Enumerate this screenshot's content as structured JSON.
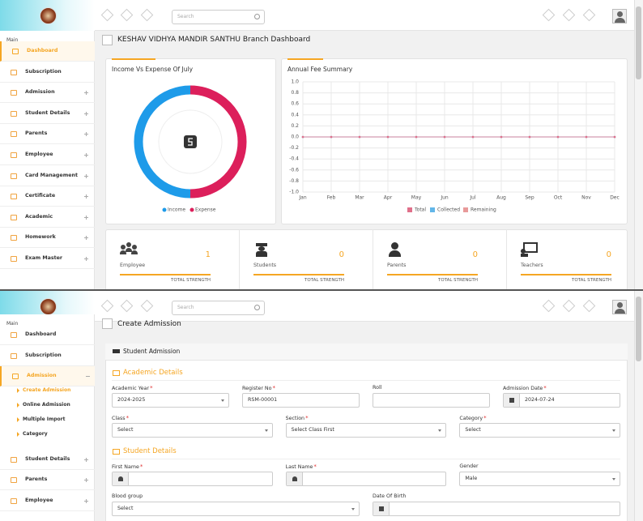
{
  "header": {
    "search_placeholder": "Search"
  },
  "sidebar": {
    "section": "Main",
    "items": [
      {
        "label": "Dashboard",
        "active": true
      },
      {
        "label": "Subscription"
      },
      {
        "label": "Admission",
        "expandable": true
      },
      {
        "label": "Student Details",
        "expandable": true
      },
      {
        "label": "Parents",
        "expandable": true
      },
      {
        "label": "Employee",
        "expandable": true
      },
      {
        "label": "Card Management",
        "expandable": true
      },
      {
        "label": "Certificate",
        "expandable": true
      },
      {
        "label": "Academic",
        "expandable": true
      },
      {
        "label": "Homework",
        "expandable": true
      },
      {
        "label": "Exam Master",
        "expandable": true
      }
    ]
  },
  "dashboard": {
    "title": "KESHAV VIDHYA MANDIR SANTHU Branch Dashboard",
    "stats": [
      {
        "label": "Employee",
        "value": 1,
        "footer": "TOTAL STRENGTH",
        "icon": "group"
      },
      {
        "label": "Students",
        "value": 0,
        "footer": "TOTAL STRENGTH",
        "icon": "grad"
      },
      {
        "label": "Parents",
        "value": 0,
        "footer": "TOTAL STRENGTH",
        "icon": "person"
      },
      {
        "label": "Teachers",
        "value": 0,
        "footer": "TOTAL STRENGTH",
        "icon": "teacher"
      }
    ]
  },
  "chart_data": [
    {
      "type": "pie",
      "donut": true,
      "title": "Income Vs Expense Of July",
      "categories": [
        "Income",
        "Expense"
      ],
      "values": [
        50,
        50
      ],
      "colors": [
        "#1e9be9",
        "#dc1f5b"
      ]
    },
    {
      "type": "line",
      "title": "Annual Fee Summary",
      "categories": [
        "Jan",
        "Feb",
        "Mar",
        "Apr",
        "May",
        "Jun",
        "Jul",
        "Aug",
        "Sep",
        "Oct",
        "Nov",
        "Dec"
      ],
      "series": [
        {
          "name": "Total",
          "color": "#e0708a",
          "values": [
            0,
            0,
            0,
            0,
            0,
            0,
            0,
            0,
            0,
            0,
            0,
            0
          ]
        },
        {
          "name": "Collected",
          "color": "#62b6e8",
          "values": [
            0,
            0,
            0,
            0,
            0,
            0,
            0,
            0,
            0,
            0,
            0,
            0
          ]
        },
        {
          "name": "Remaining",
          "color": "#e89a9a",
          "values": [
            0,
            0,
            0,
            0,
            0,
            0,
            0,
            0,
            0,
            0,
            0,
            0
          ]
        }
      ],
      "ylim": [
        -1,
        1
      ],
      "yticks": [
        {
          "value": -1,
          "label": "-1.0"
        },
        {
          "value": -0.8,
          "label": "-0.8"
        },
        {
          "value": -0.6,
          "label": "-0.6"
        },
        {
          "value": -0.4,
          "label": "-0.4"
        },
        {
          "value": -0.2,
          "label": "-0.2"
        },
        {
          "value": 0,
          "label": "0.0"
        },
        {
          "value": 0.2,
          "label": "0.2"
        },
        {
          "value": 0.4,
          "label": "0.4"
        },
        {
          "value": 0.6,
          "label": "0.6"
        },
        {
          "value": 0.8,
          "label": "0.8"
        },
        {
          "value": 1,
          "label": "1.0"
        }
      ],
      "grid": true
    }
  ],
  "sidebar2": {
    "section": "Main",
    "items": [
      {
        "label": "Dashboard"
      },
      {
        "label": "Subscription"
      },
      {
        "label": "Admission",
        "expandable": true,
        "expanded": true,
        "active": true,
        "subitems": [
          {
            "label": "Create Admission",
            "active": true
          },
          {
            "label": "Online Admission"
          },
          {
            "label": "Multiple Import"
          },
          {
            "label": "Category"
          }
        ]
      },
      {
        "label": "Student Details",
        "expandable": true
      },
      {
        "label": "Parents",
        "expandable": true
      },
      {
        "label": "Employee",
        "expandable": true
      }
    ]
  },
  "admission": {
    "title": "Create Admission",
    "card_title": "Student Admission",
    "required_mark": "*",
    "sections": [
      {
        "title": "Academic Details",
        "rows": [
          [
            {
              "label": "Academic Year",
              "required": true,
              "value": "2024-2025",
              "kind": "select"
            },
            {
              "label": "Register No",
              "required": true,
              "value": "RSM-00001"
            },
            {
              "label": "Roll"
            },
            {
              "label": "Admission Date",
              "required": true,
              "value": "2024-07-24",
              "icon": "calendar"
            }
          ],
          [
            {
              "label": "Class",
              "required": true,
              "value": "Select",
              "kind": "select"
            },
            {
              "label": "Section",
              "required": true,
              "value": "Select Class First",
              "kind": "select"
            },
            {
              "label": "Category",
              "required": true,
              "value": "Select",
              "kind": "select"
            }
          ]
        ]
      },
      {
        "title": "Student Details",
        "rows": [
          [
            {
              "label": "First Name",
              "required": true,
              "icon": "user"
            },
            {
              "label": "Last Name",
              "required": true,
              "icon": "user"
            },
            {
              "label": "Gender",
              "value": "Male",
              "kind": "select"
            }
          ],
          [
            {
              "label": "Blood group",
              "value": "Select",
              "kind": "select"
            },
            {
              "label": "Date Of Birth",
              "icon": "calendar"
            }
          ]
        ]
      }
    ]
  }
}
